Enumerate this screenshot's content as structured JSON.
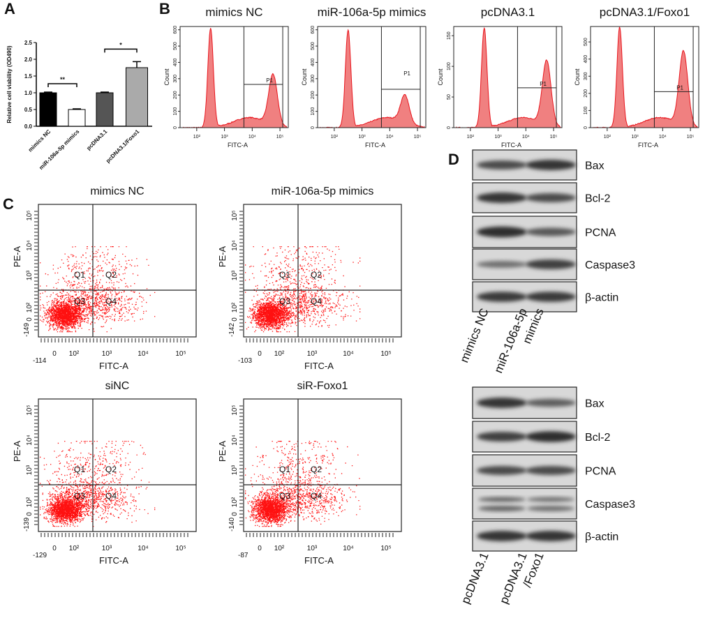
{
  "panels": {
    "a": "A",
    "b": "B",
    "c": "C",
    "d": "D"
  },
  "colors": {
    "histogram_fill": "#f08080",
    "histogram_line": "#e8141c",
    "dots": "#ff1010"
  },
  "chart_data": [
    {
      "panel": "A",
      "type": "bar",
      "ylabel": "Relative cell viability (OD490)",
      "categories": [
        "mimics NC",
        "miR-106a-5p mimics",
        "pcDNA3.1",
        "pcDNA3.1/Foxo1"
      ],
      "values": [
        1.0,
        0.5,
        1.0,
        1.75
      ],
      "errors": [
        0.02,
        0.02,
        0.02,
        0.18
      ],
      "bar_colors": [
        "#000000",
        "#ffffff",
        "#555555",
        "#aaaaaa"
      ],
      "ylim": [
        0,
        2.5
      ],
      "yticks": [
        "0.0",
        "0.5",
        "1.0",
        "1.5",
        "2.0",
        "2.5"
      ],
      "significance": [
        {
          "between": [
            0,
            1
          ],
          "label": "**"
        },
        {
          "between": [
            2,
            3
          ],
          "label": "*"
        }
      ]
    },
    {
      "panel": "B",
      "type": "area",
      "xlabel": "FITC-A",
      "ylabel": "Count",
      "xscale": "log",
      "xticks": [
        "10²",
        "10³",
        "10⁴",
        "10⁵"
      ],
      "gate": "P1",
      "plots": [
        {
          "title": "mimics NC",
          "ymax": 620,
          "yticks": [
            "0",
            "100",
            "200",
            "300",
            "400",
            "500",
            "600"
          ],
          "peak1": [
            2.5,
            610
          ],
          "peak2": [
            4.75,
            310
          ],
          "gate_level": 265
        },
        {
          "title": "miR-106a-5p mimics",
          "ymax": 620,
          "yticks": [
            "0",
            "100",
            "200",
            "300",
            "400",
            "500",
            "600"
          ],
          "peak1": [
            2.5,
            600
          ],
          "peak2": [
            4.55,
            170
          ],
          "gate_level": 235
        },
        {
          "title": "pcDNA3.1",
          "ymax": 165,
          "yticks": [
            "0",
            "50",
            "100",
            "150"
          ],
          "peak1": [
            2.5,
            163
          ],
          "peak2": [
            4.75,
            105
          ],
          "gate_level": 65
        },
        {
          "title": "pcDNA3.1/Foxo1",
          "ymax": 590,
          "yticks": [
            "0",
            "100",
            "200",
            "300",
            "400",
            "500"
          ],
          "peak1": [
            2.45,
            585
          ],
          "peak2": [
            4.75,
            430
          ],
          "gate_level": 210
        }
      ]
    },
    {
      "panel": "C",
      "type": "scatter",
      "xlabel": "FITC-A",
      "ylabel": "PE-A",
      "xticks": [
        "0",
        "10²",
        "10³",
        "10⁴",
        "10⁵"
      ],
      "yticks": [
        "0",
        "10²",
        "10³",
        "10⁴",
        "10⁵"
      ],
      "quadrants": [
        "Q1",
        "Q2",
        "Q3",
        "Q4"
      ],
      "plots": [
        {
          "title": "mimics NC",
          "xmin": "-114",
          "ymin": "-149"
        },
        {
          "title": "miR-106a-5p mimics",
          "xmin": "-103",
          "ymin": "-142"
        },
        {
          "title": "siNC",
          "xmin": "-129",
          "ymin": "-139"
        },
        {
          "title": "siR-Foxo1",
          "xmin": "-87",
          "ymin": "-140"
        }
      ]
    }
  ],
  "western_blots": [
    {
      "proteins": [
        "Bax",
        "Bcl-2",
        "PCNA",
        "Caspase3",
        "β-actin"
      ],
      "lanes": [
        "mimics NC",
        "miR-106a-5p mimics"
      ],
      "lane_labels": [
        [
          "mimics NC"
        ],
        [
          "miR-106a-5p",
          "mimics"
        ]
      ]
    },
    {
      "proteins": [
        "Bax",
        "Bcl-2",
        "PCNA",
        "Caspase3",
        "β-actin"
      ],
      "lanes": [
        "pcDNA3.1",
        "pcDNA3.1/Foxo1"
      ],
      "lane_labels": [
        [
          "pcDNA3.1"
        ],
        [
          "pcDNA3.1",
          "/Foxo1"
        ]
      ]
    }
  ]
}
